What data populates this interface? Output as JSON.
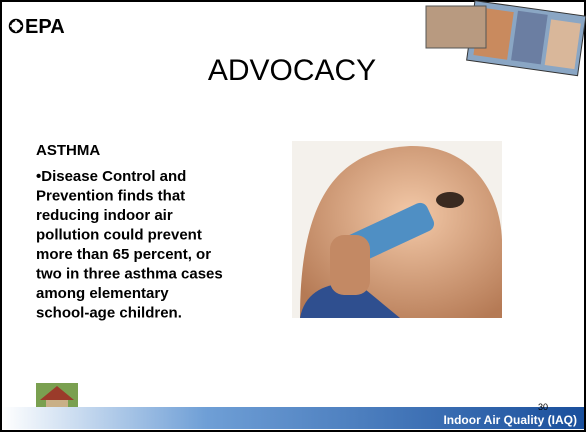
{
  "header": {
    "logo": "EPA",
    "title": "ADVOCACY"
  },
  "body": {
    "heading": "ASTHMA",
    "bullet_lines": [
      "•Disease Control and",
      "Prevention finds that",
      "reducing indoor air",
      "pollution could prevent",
      "more than 65 percent, or",
      "two in three asthma cases",
      "among elementary",
      "school-age children."
    ]
  },
  "footer": {
    "page_number": "30",
    "label": "Indoor Air Quality (IAQ)"
  }
}
